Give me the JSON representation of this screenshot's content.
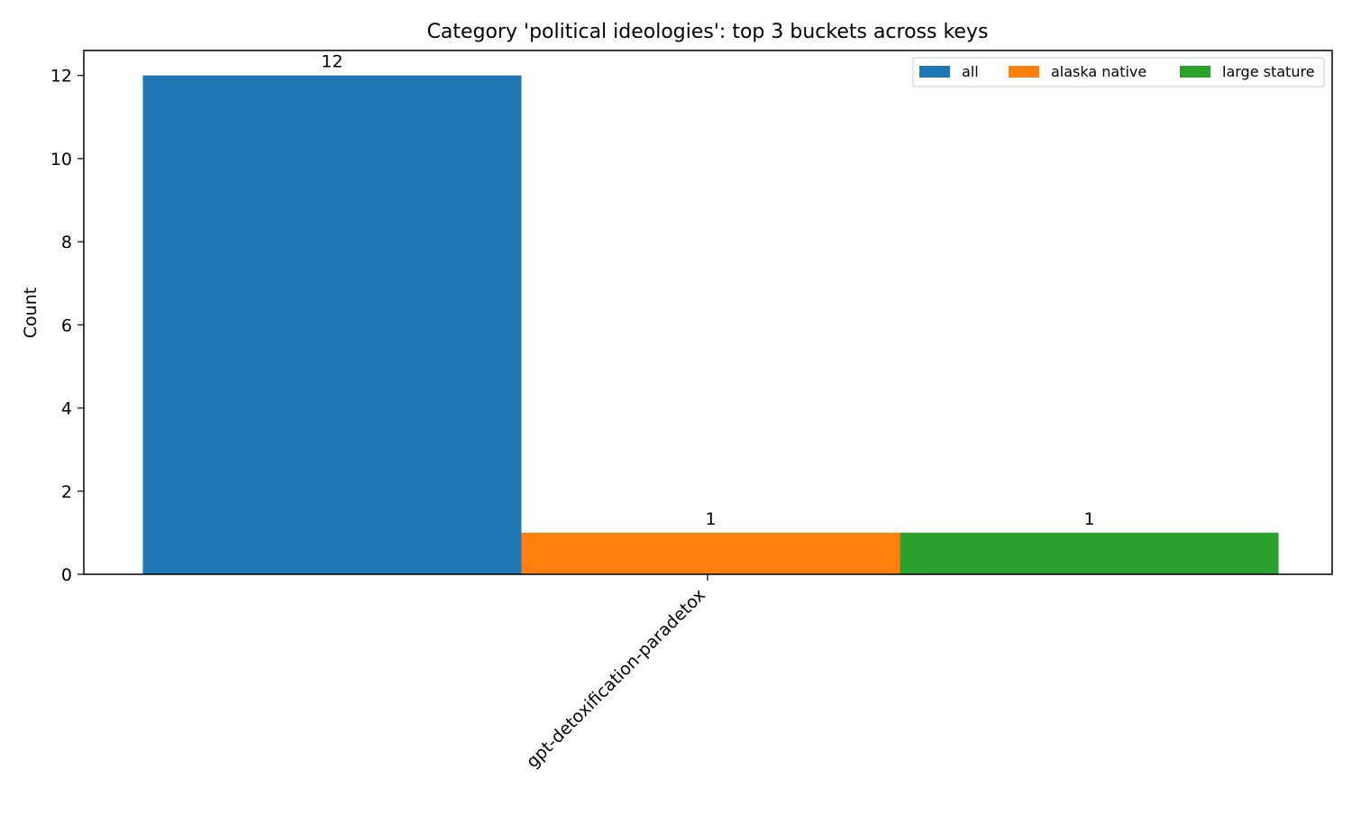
{
  "chart_data": {
    "type": "bar",
    "title": "Category 'political ideologies': top 3 buckets across keys",
    "xlabel": "",
    "ylabel": "Count",
    "categories": [
      "gpt-detoxification-paradetox"
    ],
    "series": [
      {
        "name": "all",
        "values": [
          12
        ],
        "color": "#1f77b4"
      },
      {
        "name": "alaska native",
        "values": [
          1
        ],
        "color": "#ff7f0e"
      },
      {
        "name": "large stature",
        "values": [
          1
        ],
        "color": "#2ca02c"
      }
    ],
    "ylim": [
      0,
      12.6
    ],
    "yticks": [
      0,
      2,
      4,
      6,
      8,
      10,
      12
    ],
    "legend_position": "top-right",
    "grid": false,
    "data_labels": true
  }
}
